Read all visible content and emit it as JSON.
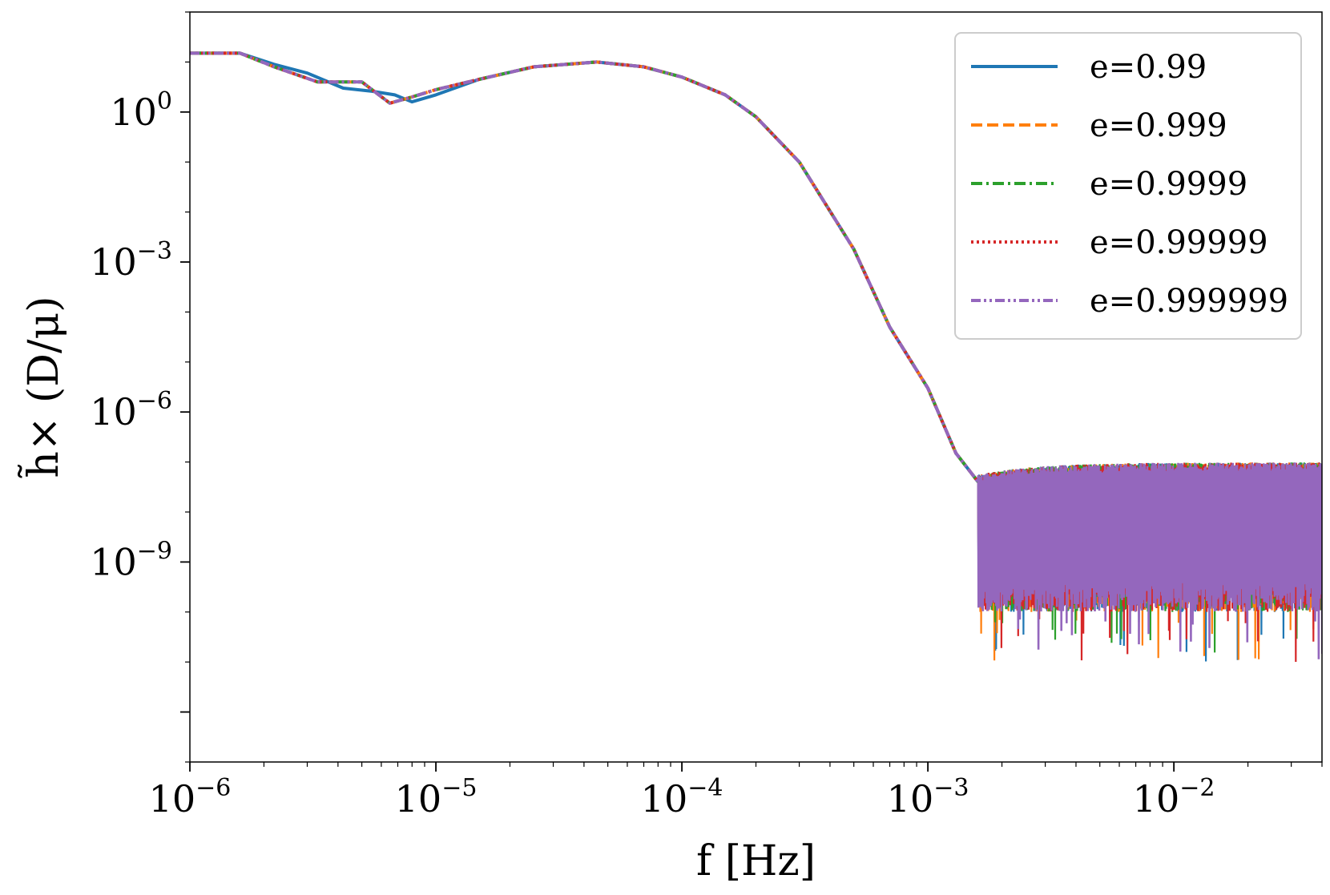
{
  "chart_data": {
    "type": "line",
    "title": "",
    "xlabel": "f [Hz]",
    "ylabel": "h̃× (D/μ)",
    "xscale": "log",
    "yscale": "log",
    "xlim": [
      1e-06,
      0.04
    ],
    "ylim": [
      1e-13,
      100.0
    ],
    "grid": false,
    "legend_position": "top-right",
    "x_ticks": [
      {
        "base": "10",
        "exp": "−6"
      },
      {
        "base": "10",
        "exp": "−5"
      },
      {
        "base": "10",
        "exp": "−4"
      },
      {
        "base": "10",
        "exp": "−3"
      },
      {
        "base": "10",
        "exp": "−2"
      }
    ],
    "y_ticks": [
      {
        "base": "10",
        "exp": "0"
      },
      {
        "base": "10",
        "exp": "−3"
      },
      {
        "base": "10",
        "exp": "−6"
      },
      {
        "base": "10",
        "exp": "−9"
      }
    ],
    "noise_floor": {
      "start_f": 0.0016,
      "upper": 8e-08,
      "center": 8e-09,
      "lower": 2e-10,
      "deepest": 1e-11
    },
    "series": [
      {
        "name": "e=0.99",
        "color": "#1f77b4",
        "style": "solid",
        "points": [
          [
            1e-06,
            15
          ],
          [
            1.6e-06,
            15
          ],
          [
            2.2e-06,
            9
          ],
          [
            3e-06,
            6
          ],
          [
            4.2e-06,
            3
          ],
          [
            5.5e-06,
            2.6
          ],
          [
            6.8e-06,
            2.2
          ],
          [
            8e-06,
            1.6
          ],
          [
            1e-05,
            2.2
          ],
          [
            1.5e-05,
            4.5
          ],
          [
            2.5e-05,
            8
          ],
          [
            4.5e-05,
            10
          ],
          [
            7e-05,
            8
          ],
          [
            0.0001,
            5
          ],
          [
            0.00015,
            2.2
          ],
          [
            0.0002,
            0.8
          ],
          [
            0.0003,
            0.1
          ],
          [
            0.0005,
            0.0018
          ],
          [
            0.0007,
            5e-05
          ],
          [
            0.001,
            3e-06
          ],
          [
            0.0013,
            1.5e-07
          ],
          [
            0.0016,
            4e-08
          ]
        ]
      },
      {
        "name": "e=0.999",
        "color": "#ff7f0e",
        "style": "dashed",
        "points": [
          [
            1e-06,
            15
          ],
          [
            1.6e-06,
            15
          ],
          [
            2.2e-06,
            8
          ],
          [
            3.3e-06,
            4
          ],
          [
            4.5e-06,
            4
          ],
          [
            5e-06,
            4
          ],
          [
            6.5e-06,
            1.5
          ],
          [
            8e-06,
            2
          ],
          [
            1e-05,
            2.8
          ],
          [
            1.5e-05,
            4.5
          ],
          [
            2.5e-05,
            8
          ],
          [
            4.5e-05,
            10
          ],
          [
            7e-05,
            8
          ],
          [
            0.0001,
            5
          ],
          [
            0.00015,
            2.2
          ],
          [
            0.0002,
            0.8
          ],
          [
            0.0003,
            0.1
          ],
          [
            0.0005,
            0.0018
          ],
          [
            0.0007,
            5e-05
          ],
          [
            0.001,
            3e-06
          ],
          [
            0.0013,
            1.5e-07
          ],
          [
            0.0016,
            4e-08
          ]
        ]
      },
      {
        "name": "e=0.9999",
        "color": "#2ca02c",
        "style": "dashdot",
        "points": [
          [
            1e-06,
            15
          ],
          [
            1.6e-06,
            15
          ],
          [
            2.2e-06,
            8
          ],
          [
            3.3e-06,
            4
          ],
          [
            4.5e-06,
            4
          ],
          [
            5e-06,
            4
          ],
          [
            6.5e-06,
            1.5
          ],
          [
            8e-06,
            2
          ],
          [
            1e-05,
            2.8
          ],
          [
            1.5e-05,
            4.5
          ],
          [
            2.5e-05,
            8
          ],
          [
            4.5e-05,
            10
          ],
          [
            7e-05,
            8
          ],
          [
            0.0001,
            5
          ],
          [
            0.00015,
            2.2
          ],
          [
            0.0002,
            0.8
          ],
          [
            0.0003,
            0.1
          ],
          [
            0.0005,
            0.0018
          ],
          [
            0.0007,
            5e-05
          ],
          [
            0.001,
            3e-06
          ],
          [
            0.0013,
            1.5e-07
          ],
          [
            0.0016,
            4e-08
          ]
        ]
      },
      {
        "name": "e=0.99999",
        "color": "#d62728",
        "style": "dotted",
        "points": [
          [
            1e-06,
            15
          ],
          [
            1.6e-06,
            15
          ],
          [
            2.2e-06,
            8
          ],
          [
            3.3e-06,
            4
          ],
          [
            4.5e-06,
            4
          ],
          [
            5e-06,
            4
          ],
          [
            6.5e-06,
            1.5
          ],
          [
            8e-06,
            2
          ],
          [
            1e-05,
            2.8
          ],
          [
            1.5e-05,
            4.5
          ],
          [
            2.5e-05,
            8
          ],
          [
            4.5e-05,
            10
          ],
          [
            7e-05,
            8
          ],
          [
            0.0001,
            5
          ],
          [
            0.00015,
            2.2
          ],
          [
            0.0002,
            0.8
          ],
          [
            0.0003,
            0.1
          ],
          [
            0.0005,
            0.0018
          ],
          [
            0.0007,
            5e-05
          ],
          [
            0.001,
            3e-06
          ],
          [
            0.0013,
            1.5e-07
          ],
          [
            0.0016,
            4e-08
          ]
        ]
      },
      {
        "name": "e=0.999999",
        "color": "#9467bd",
        "style": "dashdotdot",
        "points": [
          [
            1e-06,
            15
          ],
          [
            1.6e-06,
            15
          ],
          [
            2.2e-06,
            8
          ],
          [
            3.3e-06,
            4
          ],
          [
            4.5e-06,
            4
          ],
          [
            5e-06,
            4
          ],
          [
            6.5e-06,
            1.5
          ],
          [
            8e-06,
            2
          ],
          [
            1e-05,
            2.8
          ],
          [
            1.5e-05,
            4.5
          ],
          [
            2.5e-05,
            8
          ],
          [
            4.5e-05,
            10
          ],
          [
            7e-05,
            8
          ],
          [
            0.0001,
            5
          ],
          [
            0.00015,
            2.2
          ],
          [
            0.0002,
            0.8
          ],
          [
            0.0003,
            0.1
          ],
          [
            0.0005,
            0.0018
          ],
          [
            0.0007,
            5e-05
          ],
          [
            0.001,
            3e-06
          ],
          [
            0.0013,
            1.5e-07
          ],
          [
            0.0016,
            4e-08
          ]
        ]
      }
    ]
  }
}
